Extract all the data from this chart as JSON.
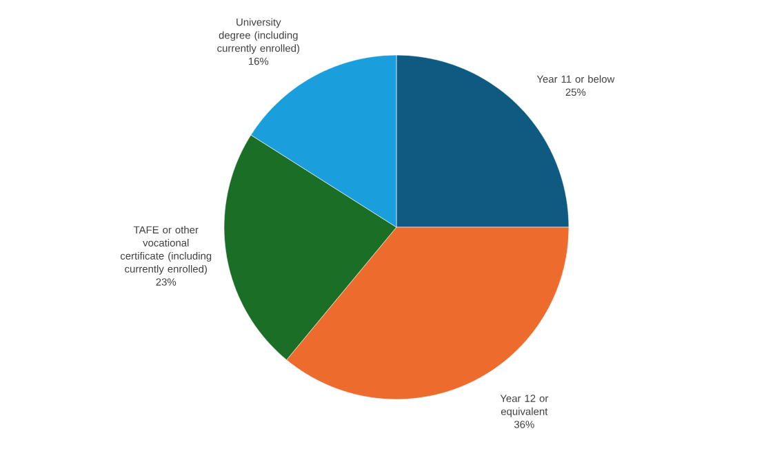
{
  "chart_data": {
    "type": "pie",
    "categories": [
      "Year 11 or below",
      "Year 12 or equivalent",
      "TAFE or other vocational certificate (including currently enrolled)",
      "University degree (including currently enrolled)"
    ],
    "values": [
      25,
      36,
      23,
      16
    ],
    "value_labels": [
      "25%",
      "36%",
      "23%",
      "16%"
    ],
    "colors": [
      "#0f5a80",
      "#ec6b2d",
      "#1a6e25",
      "#1a9fdc"
    ]
  }
}
